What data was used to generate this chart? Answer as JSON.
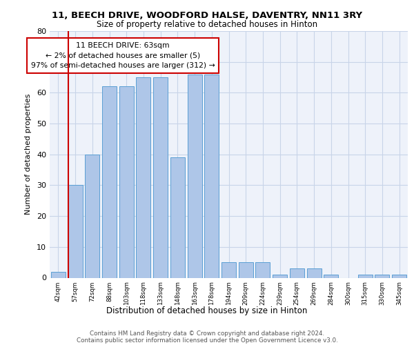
{
  "title1": "11, BEECH DRIVE, WOODFORD HALSE, DAVENTRY, NN11 3RY",
  "title2": "Size of property relative to detached houses in Hinton",
  "xlabel": "Distribution of detached houses by size in Hinton",
  "ylabel": "Number of detached properties",
  "categories": [
    "42sqm",
    "57sqm",
    "72sqm",
    "88sqm",
    "103sqm",
    "118sqm",
    "133sqm",
    "148sqm",
    "163sqm",
    "178sqm",
    "194sqm",
    "209sqm",
    "224sqm",
    "239sqm",
    "254sqm",
    "269sqm",
    "284sqm",
    "300sqm",
    "315sqm",
    "330sqm",
    "345sqm"
  ],
  "values": [
    2,
    30,
    40,
    62,
    62,
    65,
    65,
    39,
    66,
    66,
    5,
    5,
    5,
    1,
    3,
    3,
    1,
    0,
    1,
    1,
    1
  ],
  "bar_color": "#aec6e8",
  "bar_edge_color": "#5a9fd4",
  "vline_x": 0.575,
  "vline_color": "#cc0000",
  "annotation_text": "11 BEECH DRIVE: 63sqm\n← 2% of detached houses are smaller (5)\n97% of semi-detached houses are larger (312) →",
  "annotation_box_facecolor": "white",
  "annotation_box_edgecolor": "#cc0000",
  "ylim": [
    0,
    80
  ],
  "yticks": [
    0,
    10,
    20,
    30,
    40,
    50,
    60,
    70,
    80
  ],
  "grid_color": "#c8d4e8",
  "bg_color": "#eef2fa",
  "footer1": "Contains HM Land Registry data © Crown copyright and database right 2024.",
  "footer2": "Contains public sector information licensed under the Open Government Licence v3.0."
}
